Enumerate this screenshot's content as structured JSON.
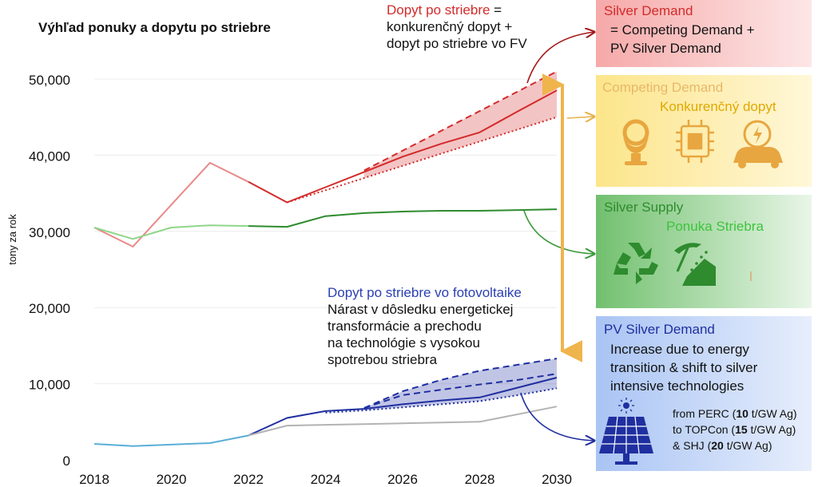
{
  "chart_data": {
    "type": "line",
    "title": "Výhľad ponuky a dopytu po striebre",
    "ylabel": "tony za rok",
    "xlabel": "",
    "xlim": [
      2018,
      2030
    ],
    "ylim": [
      0,
      50000
    ],
    "x_ticks": [
      "2018",
      "2020",
      "2022",
      "2024",
      "2026",
      "2028",
      "2030"
    ],
    "y_ticks": [
      "0",
      "10,000",
      "20,000",
      "30,000",
      "40,000",
      "50,000"
    ],
    "grid": true,
    "series": [
      {
        "name": "Silver Demand (historical)",
        "color": "#e88a8a",
        "points": [
          [
            2018,
            30500
          ],
          [
            2019,
            28000
          ],
          [
            2020,
            33500
          ],
          [
            2021,
            39000
          ],
          [
            2022,
            36500
          ]
        ]
      },
      {
        "name": "Silver Demand",
        "color": "#d42a2a",
        "points": [
          [
            2022,
            36500
          ],
          [
            2023,
            33800
          ],
          [
            2024,
            35800
          ],
          [
            2025,
            37800
          ],
          [
            2026,
            39800
          ],
          [
            2027,
            41500
          ],
          [
            2028,
            43000
          ],
          [
            2029,
            45800
          ],
          [
            2030,
            48500
          ]
        ]
      },
      {
        "name": "Silver Demand high",
        "color": "#d42a2a",
        "style": "dashed",
        "points": [
          [
            2025,
            38000
          ],
          [
            2030,
            51000
          ]
        ]
      },
      {
        "name": "Silver Demand low",
        "color": "#d42a2a",
        "style": "dotted",
        "points": [
          [
            2023,
            33800
          ],
          [
            2025,
            37000
          ],
          [
            2030,
            45000
          ]
        ]
      },
      {
        "name": "Silver Supply (historical)",
        "color": "#8fd68a",
        "points": [
          [
            2018,
            30500
          ],
          [
            2019,
            29000
          ],
          [
            2020,
            30500
          ],
          [
            2021,
            30800
          ],
          [
            2022,
            30700
          ]
        ]
      },
      {
        "name": "Silver Supply",
        "color": "#2e8b2e",
        "points": [
          [
            2022,
            30700
          ],
          [
            2023,
            30600
          ],
          [
            2024,
            32000
          ],
          [
            2025,
            32400
          ],
          [
            2026,
            32600
          ],
          [
            2027,
            32700
          ],
          [
            2028,
            32700
          ],
          [
            2029,
            32800
          ],
          [
            2030,
            32900
          ]
        ]
      },
      {
        "name": "PV Silver Demand (historical)",
        "color": "#5aaed6",
        "points": [
          [
            2018,
            2100
          ],
          [
            2019,
            1800
          ],
          [
            2020,
            2000
          ],
          [
            2021,
            2200
          ],
          [
            2022,
            3200
          ]
        ]
      },
      {
        "name": "PV Silver Demand",
        "color": "#1f2fa0",
        "points": [
          [
            2022,
            3200
          ],
          [
            2023,
            5500
          ],
          [
            2024,
            6400
          ],
          [
            2025,
            6700
          ],
          [
            2026,
            7300
          ],
          [
            2027,
            7800
          ],
          [
            2028,
            8200
          ],
          [
            2029,
            9500
          ],
          [
            2030,
            10800
          ]
        ]
      },
      {
        "name": "PV Silver Demand high",
        "color": "#1f2fa0",
        "style": "dashed",
        "points": [
          [
            2025,
            6800
          ],
          [
            2026,
            9000
          ],
          [
            2027,
            10500
          ],
          [
            2028,
            11700
          ],
          [
            2029,
            12500
          ],
          [
            2030,
            13300
          ]
        ]
      },
      {
        "name": "PV Silver Demand mid",
        "color": "#1f2fa0",
        "style": "dashed",
        "points": [
          [
            2025,
            6800
          ],
          [
            2026,
            8500
          ],
          [
            2027,
            9200
          ],
          [
            2028,
            9900
          ],
          [
            2029,
            10500
          ],
          [
            2030,
            11300
          ]
        ]
      },
      {
        "name": "PV Silver Demand low",
        "color": "#1f2fa0",
        "style": "dotted",
        "points": [
          [
            2024,
            6200
          ],
          [
            2025,
            6500
          ],
          [
            2026,
            6900
          ],
          [
            2027,
            7300
          ],
          [
            2028,
            7700
          ],
          [
            2029,
            8500
          ],
          [
            2030,
            9400
          ]
        ]
      },
      {
        "name": "Other",
        "color": "#b3b3b3",
        "points": [
          [
            2022,
            3200
          ],
          [
            2023,
            4500
          ],
          [
            2024,
            4600
          ],
          [
            2025,
            4700
          ],
          [
            2026,
            4800
          ],
          [
            2027,
            4900
          ],
          [
            2028,
            5000
          ],
          [
            2029,
            6000
          ],
          [
            2030,
            7000
          ]
        ]
      }
    ],
    "bands": [
      {
        "name": "Silver Demand range",
        "color": "#d42a2a",
        "upper": "Silver Demand high",
        "lower": "Silver Demand low"
      },
      {
        "name": "PV Silver Demand range",
        "color": "#1f2fa0",
        "upper": "PV Silver Demand high",
        "lower": "PV Silver Demand low"
      }
    ],
    "annotations": {
      "demand": {
        "head": "Dopyt po striebre",
        "tail": " =",
        "line2": "konkurenčný dopyt +",
        "line3": "dopyt po striebre vo FV"
      },
      "pv": {
        "head": "Dopyt po striebre vo fotovoltaike",
        "line2": "Nárast v dôsledku energetickej",
        "line3": "transformácie a prechodu",
        "line4": "na technológie s vysokou",
        "line5": "spotrebou striebra"
      }
    }
  },
  "panels": {
    "silver_demand": {
      "title": "Silver Demand",
      "line1": "= Competing Demand +",
      "line2": "PV Silver Demand",
      "color": "#d42a2a"
    },
    "competing_demand": {
      "title": "Competing Demand",
      "subtitle": "Konkurenčný dopyt",
      "color": "#e8a640",
      "icons": [
        "jewelry-icon",
        "chip-icon",
        "electric-car-icon"
      ]
    },
    "silver_supply": {
      "title": "Silver Supply",
      "subtitle": "Ponuka Striebra",
      "color": "#2e8b2e",
      "icons": [
        "recycle-icon",
        "mining-icon"
      ]
    },
    "pv_silver_demand": {
      "title": "PV Silver Demand",
      "line1": "Increase due to energy",
      "line2": "transition & shift to silver",
      "line3": "intensive technologies",
      "tech": [
        {
          "pre": "from PERC (",
          "num": "10",
          "post": " t/GW Ag)"
        },
        {
          "pre": "to TOPCon (",
          "num": "15",
          "post": " t/GW Ag)"
        },
        {
          "pre": "& SHJ (",
          "num": "20",
          "post": " t/GW Ag)"
        }
      ],
      "icons": [
        "solar-panel-icon"
      ]
    }
  }
}
